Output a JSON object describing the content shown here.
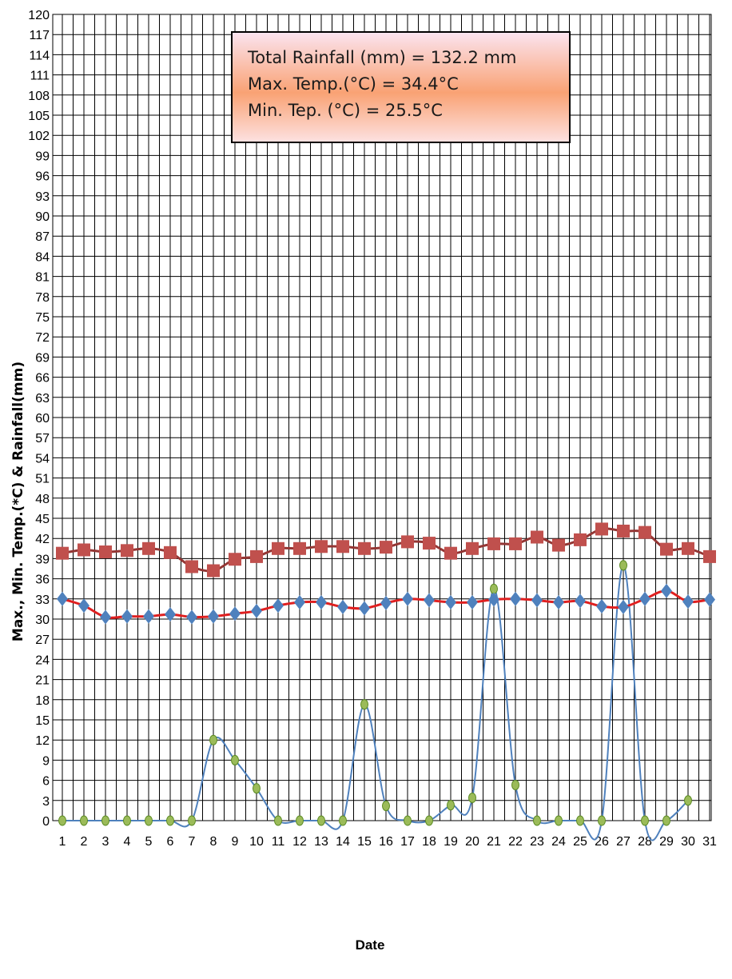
{
  "chart_data": {
    "type": "line",
    "title": "",
    "xlabel": "Date",
    "ylabel": "Max., Min. Temp.(*C) & Rainfall(mm)",
    "xlim": [
      1,
      31
    ],
    "ylim": [
      0,
      120
    ],
    "y_tick_step": 3,
    "grid": true,
    "x": [
      1,
      2,
      3,
      4,
      5,
      6,
      7,
      8,
      9,
      10,
      11,
      12,
      13,
      14,
      15,
      16,
      17,
      18,
      19,
      20,
      21,
      22,
      23,
      24,
      25,
      26,
      27,
      28,
      29,
      30,
      31
    ],
    "annotation": [
      "Total Rainfall (mm) = 132.2 mm",
      "Max. Temp.(°C)  = 34.4°C",
      "Min. Tep. (°C)  = 25.5°C"
    ],
    "series": [
      {
        "marker": "square",
        "color": "#c0504d",
        "line_color": "#943634",
        "values": [
          39.8,
          40.3,
          40.0,
          40.2,
          40.5,
          39.9,
          37.8,
          37.2,
          38.9,
          39.3,
          40.5,
          40.5,
          40.8,
          40.8,
          40.5,
          40.7,
          41.5,
          41.3,
          39.8,
          40.5,
          41.2,
          41.2,
          42.2,
          41.0,
          41.8,
          43.4,
          43.1,
          42.9,
          40.4,
          40.5,
          39.3
        ]
      },
      {
        "marker": "diamond",
        "color": "#4f81bd",
        "line_color": "#e02020",
        "values": [
          33.0,
          32.0,
          30.3,
          30.4,
          30.4,
          30.7,
          30.3,
          30.4,
          30.8,
          31.2,
          32.0,
          32.5,
          32.5,
          31.8,
          31.6,
          32.4,
          33.0,
          32.8,
          32.5,
          32.5,
          32.9,
          33.0,
          32.8,
          32.5,
          32.7,
          31.9,
          31.8,
          33.0,
          34.2,
          32.6,
          32.9
        ]
      },
      {
        "marker": "circle",
        "color": "#9bbb59",
        "line_color": "#4f81bd",
        "values": [
          0,
          0,
          0,
          0,
          0,
          0,
          0,
          12.0,
          9.0,
          4.8,
          0,
          0,
          0,
          0,
          17.3,
          2.2,
          0,
          0,
          2.3,
          3.4,
          34.5,
          5.3,
          0,
          0,
          0,
          0,
          38.0,
          0,
          0,
          3.0,
          null
        ]
      }
    ]
  }
}
